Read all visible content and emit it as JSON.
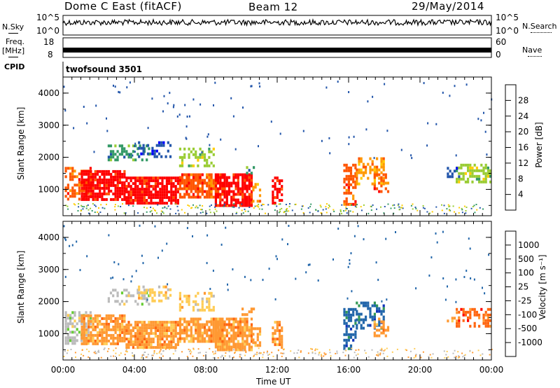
{
  "header": {
    "site": "Dome C East (fitACF)",
    "beam": "Beam 12",
    "date": "29/May/2014"
  },
  "top_panels": {
    "nsky_label": "N.Sky",
    "nsky_ticks": [
      "10^5",
      "10^0"
    ],
    "nsearch_label": "N.Search",
    "nsearch_ticks": [
      "10^5",
      "10^0"
    ],
    "freq_label": "Freq.",
    "freq_unit": "[MHz]",
    "freq_ticks": [
      "18",
      "8"
    ],
    "nave_label": "Nave",
    "nave_ticks": [
      "60",
      "0"
    ],
    "cpid_label": "CPID",
    "cpid_value": "twofsound 3501"
  },
  "chart_data": [
    {
      "type": "heatmap",
      "name": "power-panel",
      "ylabel": "Slant Range [km]",
      "xlabel": "",
      "y_ticks": [
        "4000",
        "3000",
        "2000",
        "1000"
      ],
      "y_tick_values": [
        4000,
        3000,
        2000,
        1000
      ],
      "ylim": [
        180,
        4500
      ],
      "x_range_hours": [
        0,
        24
      ],
      "colorbar_label": "Power [dB]",
      "colorbar_ticks": [
        "28",
        "24",
        "20",
        "16",
        "12",
        "8",
        "4"
      ],
      "colorbar_colors": [
        "#ff0000",
        "#ff5500",
        "#ff9900",
        "#ffcc00",
        "#99cc33",
        "#339966",
        "#2255aa",
        "#0000ff"
      ]
    },
    {
      "type": "heatmap",
      "name": "velocity-panel",
      "ylabel": "Slant Range [km]",
      "xlabel": "Time UT",
      "x_ticks": [
        "00:00",
        "04:00",
        "08:00",
        "12:00",
        "16:00",
        "20:00",
        "00:00"
      ],
      "x_tick_hours": [
        0,
        4,
        8,
        12,
        16,
        20,
        24
      ],
      "y_ticks": [
        "4000",
        "3000",
        "2000",
        "1000"
      ],
      "y_tick_values": [
        4000,
        3000,
        2000,
        1000
      ],
      "ylim": [
        180,
        4500
      ],
      "x_range_hours": [
        0,
        24
      ],
      "colorbar_label": "Velocity [m s⁻¹]",
      "colorbar_ticks": [
        "1000",
        "500",
        "100",
        "25",
        "-25",
        "-100",
        "-500",
        "-1000"
      ],
      "colorbar_colors": [
        "#1133bb",
        "#2266aa",
        "#339955",
        "#66cc33",
        "#bbbbbb",
        "#ffcc55",
        "#ff9933",
        "#ff6611",
        "#ff0000"
      ]
    }
  ]
}
